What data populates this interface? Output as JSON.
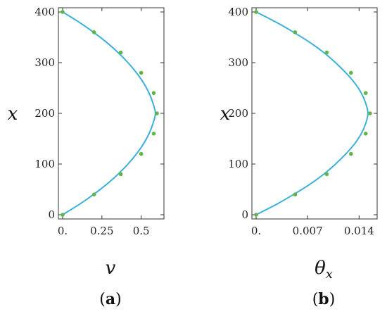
{
  "chart_data": [
    {
      "type": "line",
      "panel_label": "(a)",
      "panel_letter": "a",
      "xlabel": "v",
      "ylabel": "x",
      "xlim": [
        0,
        0.6
      ],
      "ylim": [
        0,
        400
      ],
      "xticks": [
        0,
        0.25,
        0.5
      ],
      "xtick_labels": [
        "0.",
        "0.25",
        "0.5"
      ],
      "yticks": [
        0,
        100,
        200,
        300,
        400
      ],
      "ytick_labels": [
        "0",
        "100",
        "200",
        "300",
        "400"
      ],
      "grid": false,
      "series": [
        {
          "kind": "curve",
          "color": "#3bb0d9",
          "points": [
            [
              0,
              0
            ],
            [
              0.104,
              20
            ],
            [
              0.197,
              40
            ],
            [
              0.28,
              60
            ],
            [
              0.353,
              80
            ],
            [
              0.416,
              100
            ],
            [
              0.47,
              120
            ],
            [
              0.515,
              140
            ],
            [
              0.55,
              160
            ],
            [
              0.575,
              180
            ],
            [
              0.59,
              200
            ],
            [
              0.575,
              220
            ],
            [
              0.55,
              240
            ],
            [
              0.515,
              260
            ],
            [
              0.47,
              280
            ],
            [
              0.416,
              300
            ],
            [
              0.353,
              320
            ],
            [
              0.28,
              340
            ],
            [
              0.197,
              360
            ],
            [
              0.104,
              380
            ],
            [
              0,
              400
            ]
          ]
        },
        {
          "kind": "markers",
          "color": "#5fb548",
          "points": [
            [
              0,
              0
            ],
            [
              0.2,
              40
            ],
            [
              0.37,
              80
            ],
            [
              0.5,
              120
            ],
            [
              0.58,
              160
            ],
            [
              0.6,
              200
            ],
            [
              0.58,
              240
            ],
            [
              0.5,
              280
            ],
            [
              0.37,
              320
            ],
            [
              0.2,
              360
            ],
            [
              0,
              400
            ]
          ]
        }
      ]
    },
    {
      "type": "line",
      "panel_label": "(b)",
      "panel_letter": "b",
      "xlabel": "θ_x",
      "xlabel_main": "θ",
      "xlabel_sub": "x",
      "ylabel": "x",
      "xlim": [
        0,
        0.0155
      ],
      "ylim": [
        0,
        400
      ],
      "xticks": [
        0,
        0.007,
        0.014
      ],
      "xtick_labels": [
        "0.",
        "0.007",
        "0.014"
      ],
      "yticks": [
        0,
        100,
        200,
        300,
        400
      ],
      "ytick_labels": [
        "0",
        "100",
        "200",
        "300",
        "400"
      ],
      "grid": false,
      "series": [
        {
          "kind": "curve",
          "color": "#3bb0d9",
          "points": [
            [
              0,
              0
            ],
            [
              0.0027,
              20
            ],
            [
              0.0051,
              40
            ],
            [
              0.0073,
              60
            ],
            [
              0.0092,
              80
            ],
            [
              0.0108,
              100
            ],
            [
              0.0122,
              120
            ],
            [
              0.0134,
              140
            ],
            [
              0.0143,
              160
            ],
            [
              0.0149,
              180
            ],
            [
              0.0152,
              200
            ],
            [
              0.0149,
              220
            ],
            [
              0.0143,
              240
            ],
            [
              0.0134,
              260
            ],
            [
              0.0122,
              280
            ],
            [
              0.0108,
              300
            ],
            [
              0.0092,
              320
            ],
            [
              0.0073,
              340
            ],
            [
              0.0051,
              360
            ],
            [
              0.0027,
              380
            ],
            [
              0,
              400
            ]
          ]
        },
        {
          "kind": "markers",
          "color": "#5fb548",
          "points": [
            [
              0,
              0
            ],
            [
              0.0053,
              40
            ],
            [
              0.0096,
              80
            ],
            [
              0.0129,
              120
            ],
            [
              0.0149,
              160
            ],
            [
              0.0155,
              200
            ],
            [
              0.0149,
              240
            ],
            [
              0.0129,
              280
            ],
            [
              0.0096,
              320
            ],
            [
              0.0053,
              360
            ],
            [
              0,
              400
            ]
          ]
        }
      ]
    }
  ]
}
